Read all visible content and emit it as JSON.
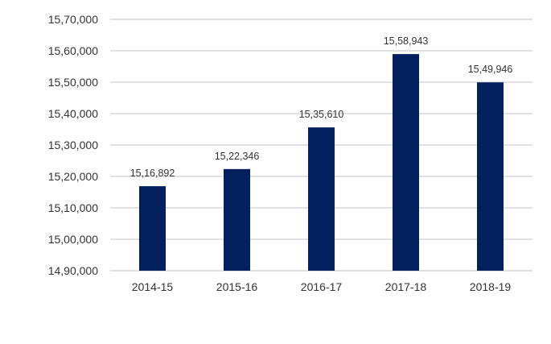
{
  "chart_data": {
    "type": "bar",
    "categories": [
      "2014-15",
      "2015-16",
      "2016-17",
      "2017-18",
      "2018-19"
    ],
    "values": [
      1516892,
      1522346,
      1535610,
      1558943,
      1549946
    ],
    "data_labels": [
      "15,16,892",
      "15,22,346",
      "15,35,610",
      "15,58,943",
      "15,49,946"
    ],
    "ylim": [
      1490000,
      1570000
    ],
    "yticks": [
      1490000,
      1500000,
      1510000,
      1520000,
      1530000,
      1540000,
      1550000,
      1560000,
      1570000
    ],
    "ytick_labels": [
      "14,90,000",
      "15,00,000",
      "15,10,000",
      "15,20,000",
      "15,30,000",
      "15,40,000",
      "15,50,000",
      "15,60,000",
      "15,70,000"
    ],
    "title": "",
    "xlabel": "",
    "ylabel": "",
    "grid": true,
    "legend": "none",
    "bar_color": "#021f5e",
    "grid_color": "#d9d9d9",
    "text_color": "#333333"
  }
}
